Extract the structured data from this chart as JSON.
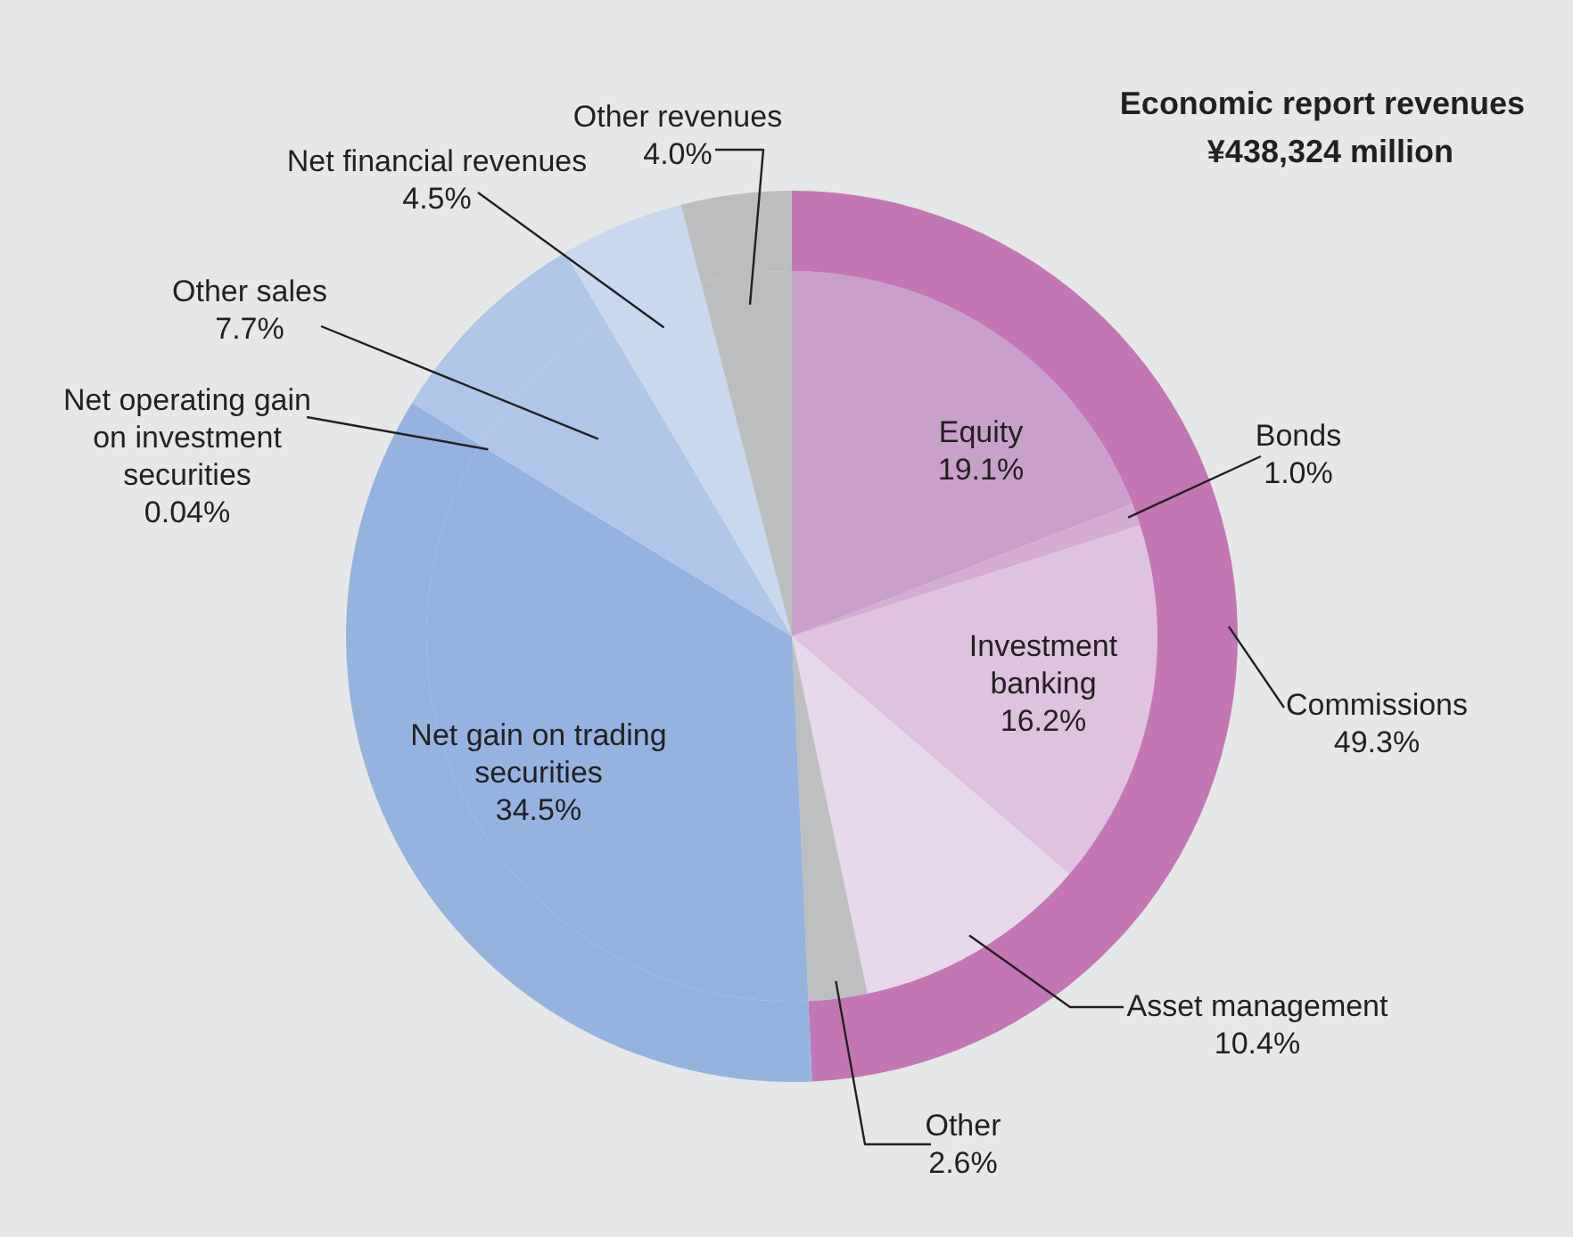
{
  "chart_data": {
    "type": "pie",
    "title": "Economic report revenues",
    "subtitle": "¥438,324 million",
    "categories": [
      "Equity",
      "Bonds",
      "Investment banking",
      "Asset management",
      "Other",
      "Net gain on trading securities",
      "Net operating gain on investment securities",
      "Other sales",
      "Net financial revenues",
      "Other revenues"
    ],
    "series": [
      {
        "values": [
          19.1,
          1.0,
          16.2,
          10.4,
          2.6,
          34.5,
          0.04,
          7.7,
          4.5,
          4.0
        ],
        "value_labels": [
          "19.1%",
          "1.0%",
          "16.2%",
          "10.4%",
          "2.6%",
          "34.5%",
          "0.04%",
          "7.7%",
          "4.5%",
          "4.0%"
        ],
        "colors": [
          "#c9a0cb",
          "#d4acd3",
          "#dfc1e0",
          "#e8d8eb",
          "#bebfc1",
          "#94b4df",
          "#a3bfe4",
          "#afc6e8",
          "#c8d8ee",
          "#bcbdbf"
        ]
      },
      {
        "type": "donut",
        "name": "Commissions",
        "values": [
          49.3,
          null,
          null,
          null,
          null,
          34.5,
          0.04,
          7.7,
          4.5,
          4.0
        ],
        "value_labels": [
          "49.3%",
          null,
          null,
          null,
          null,
          null,
          null,
          null,
          null,
          null
        ],
        "colors": [
          "#c277b4",
          null,
          null,
          null,
          null,
          "#94b4df",
          "#a3bfe4",
          "#afc6e8",
          "#c8d8ee",
          "#bcbdbf"
        ]
      }
    ]
  }
}
